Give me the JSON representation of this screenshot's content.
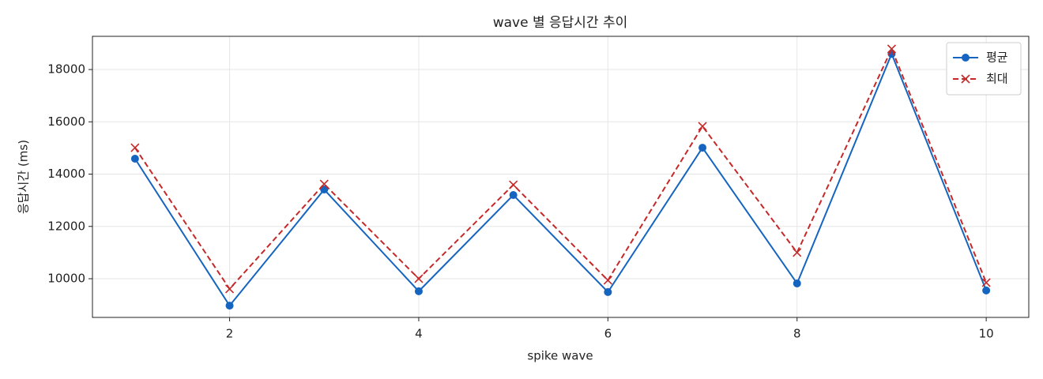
{
  "chart_data": {
    "type": "line",
    "title": "wave 별 응답시간 추이",
    "xlabel": "spike wave",
    "ylabel": "응답시간 (ms)",
    "x": [
      1,
      2,
      3,
      4,
      5,
      6,
      7,
      8,
      9,
      10
    ],
    "series": [
      {
        "name": "평균",
        "color": "#1565c0",
        "marker": "o",
        "linestyle": "solid",
        "values": [
          14590,
          8970,
          13410,
          9520,
          13200,
          9490,
          15010,
          9820,
          18600,
          9550
        ]
      },
      {
        "name": "최대",
        "color": "#c62828",
        "marker": "x",
        "linestyle": "dashed",
        "values": [
          15010,
          9610,
          13620,
          10000,
          13590,
          9940,
          15830,
          11000,
          18790,
          9850
        ]
      }
    ],
    "xlim": [
      0.55,
      10.45
    ],
    "xticks": [
      2,
      4,
      6,
      8,
      10
    ],
    "ylim": [
      8520,
      19270
    ],
    "yticks": [
      10000,
      12000,
      14000,
      16000,
      18000
    ],
    "grid": true,
    "legend": "upper right"
  }
}
